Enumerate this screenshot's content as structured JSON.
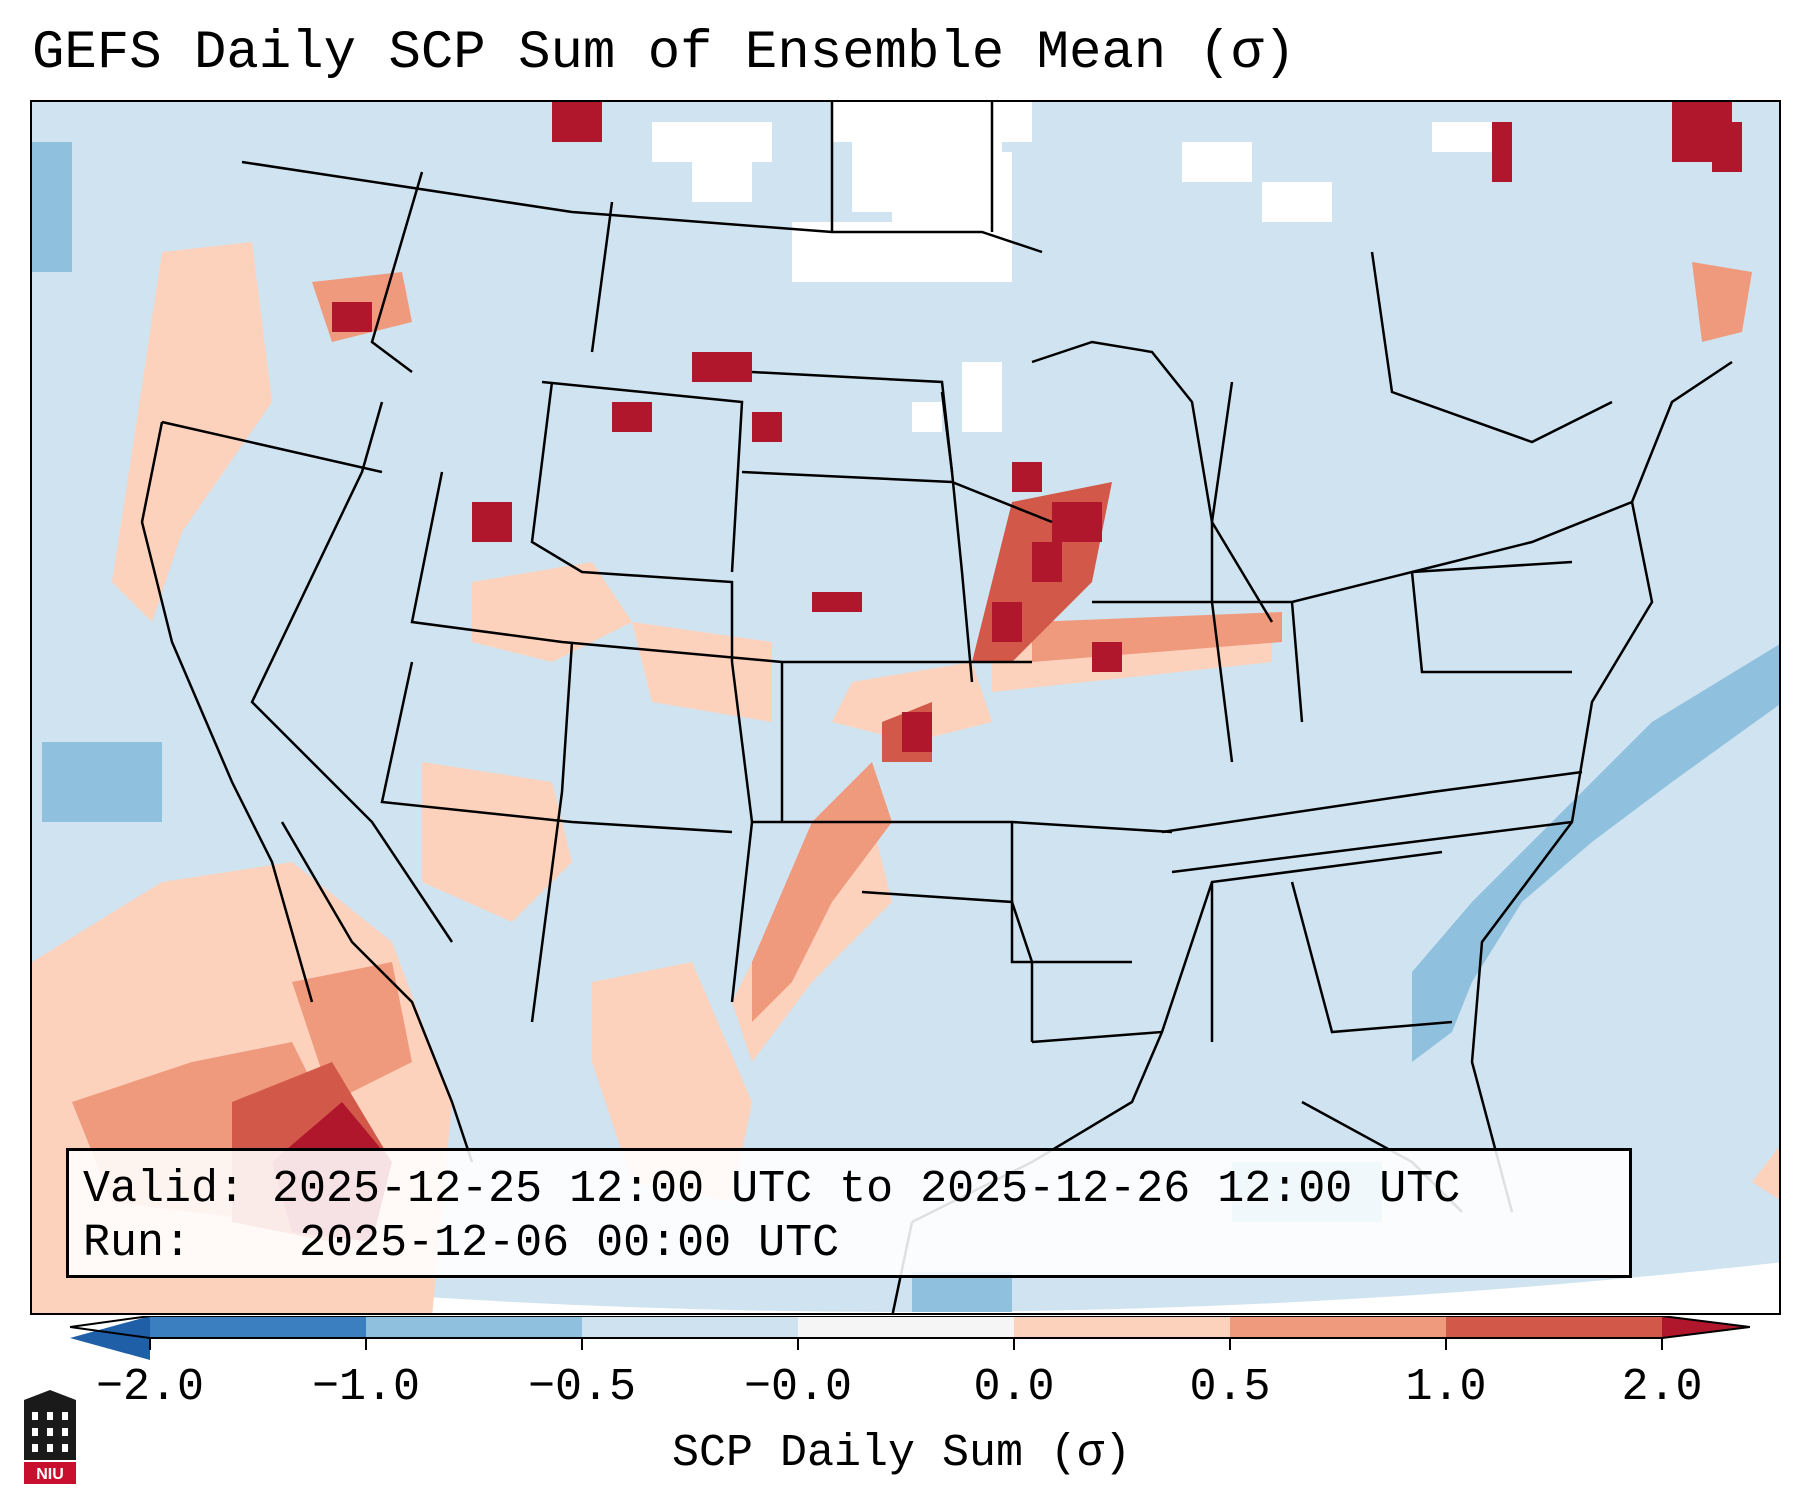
{
  "title": "GEFS Daily SCP Sum of Ensemble Mean (σ)",
  "info": {
    "valid_label": "Valid:",
    "valid_value": "2025-12-25 12:00 UTC to 2025-12-26 12:00 UTC",
    "run_label": "Run:",
    "run_value": "2025-12-06 00:00 UTC"
  },
  "colorbar": {
    "label": "SCP Daily Sum (σ)",
    "ticks": [
      "−2.0",
      "−1.0",
      "−0.5",
      "−0.0",
      "0.0",
      "0.5",
      "1.0",
      "2.0"
    ],
    "colors": [
      "#3b7fc0",
      "#8fc1de",
      "#cfe2ef",
      "#f5f5f5",
      "#fcd2bd",
      "#ef9a7d",
      "#d2584a",
      "#b0172c"
    ],
    "extend": "both"
  },
  "map": {
    "region": "Contiguous United States",
    "background_color": "#d0e3f0",
    "anomaly_colors": {
      "light_red": "#fcd2bd",
      "mid_red": "#ef9a7d",
      "red": "#d2584a",
      "dark_red": "#b0172c",
      "light_blue": "#8fc1de",
      "white": "#ffffff"
    }
  },
  "logo": {
    "text": "NIU",
    "icon": "university-seal-icon"
  }
}
